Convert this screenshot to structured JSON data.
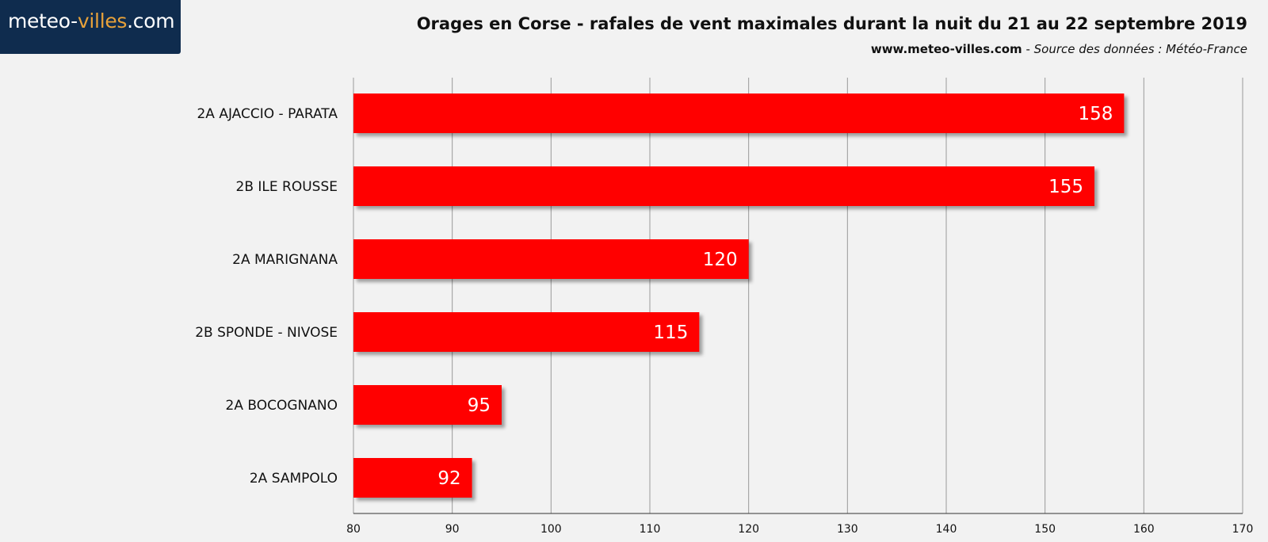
{
  "logo": {
    "text_main": "meteo-",
    "text_accent": "villes",
    "text_suffix": ".com"
  },
  "header": {
    "title": "Orages en Corse - rafales de vent maximales durant la nuit du 21 au 22 septembre 2019",
    "site": "www.meteo-villes.com",
    "separator": " - ",
    "source": "Source des données : Météo-France"
  },
  "colors": {
    "bar": "#ff0000",
    "grid": "#9a9a9a",
    "background": "#f2f2f2"
  },
  "chart_data": {
    "type": "bar",
    "orientation": "horizontal",
    "categories": [
      "2A AJACCIO - PARATA",
      "2B ILE ROUSSE",
      "2A MARIGNANA",
      "2B SPONDE - NIVOSE",
      "2A BOCOGNANO",
      "2A SAMPOLO"
    ],
    "values": [
      158,
      155,
      120,
      115,
      95,
      92
    ],
    "xlim": [
      80,
      170
    ],
    "xticks": [
      80,
      90,
      100,
      110,
      120,
      130,
      140,
      150,
      160,
      170
    ],
    "grid": true,
    "data_labels": true
  }
}
